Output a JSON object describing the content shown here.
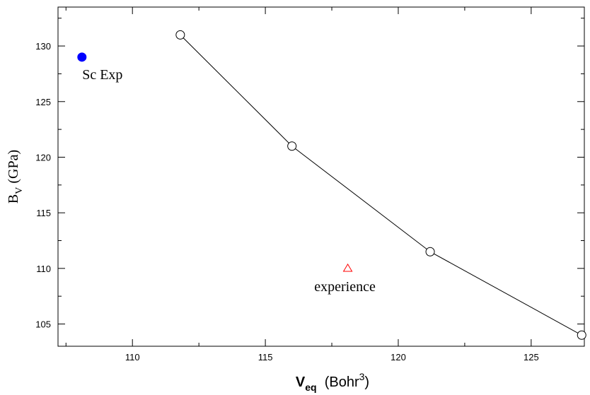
{
  "chart_data": {
    "type": "scatter",
    "xlim": [
      107.2,
      127.0
    ],
    "ylim": [
      103.0,
      133.5
    ],
    "xticks": [
      110,
      115,
      120,
      125
    ],
    "yticks": [
      105,
      110,
      115,
      120,
      125,
      130
    ],
    "x_minor_step": 2.5,
    "y_minor_step": 2.5,
    "grid": false,
    "ylabel": {
      "main": "B",
      "sub": "V",
      "rest": " (GPa)"
    },
    "xlabel": {
      "main": "V",
      "sub": "eq",
      "rest": "  (Bohr",
      "sup": "3",
      "close": ")"
    },
    "series": [
      {
        "marker": "open-circle",
        "line": true,
        "color": "#000000",
        "points": [
          {
            "x": 111.8,
            "y": 131.0
          },
          {
            "x": 116.0,
            "y": 121.0
          },
          {
            "x": 121.2,
            "y": 111.5
          },
          {
            "x": 126.9,
            "y": 104.0
          }
        ]
      },
      {
        "name": "Sc Exp",
        "marker": "filled-circle",
        "line": false,
        "color": "#0000ff",
        "points": [
          {
            "x": 108.1,
            "y": 129.0
          }
        ]
      },
      {
        "name": "experience",
        "marker": "open-triangle",
        "line": false,
        "color": "#ff0000",
        "points": [
          {
            "x": 118.1,
            "y": 110.0
          }
        ]
      }
    ]
  }
}
